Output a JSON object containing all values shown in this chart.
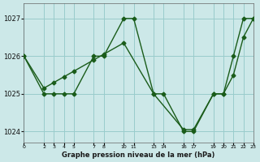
{
  "title": "Graphe pression niveau de la mer (hPa)",
  "bg_color": "#cce8e8",
  "grid_color": "#99cccc",
  "line_color": "#1a5c1a",
  "ylim": [
    1023.7,
    1027.4
  ],
  "yticks": [
    1024,
    1025,
    1026,
    1027
  ],
  "xlim": [
    0,
    23
  ],
  "series1_x": [
    0,
    2,
    3,
    4,
    5,
    7,
    8,
    10,
    11,
    13,
    14,
    16,
    17,
    19,
    20,
    21,
    22,
    23
  ],
  "series1_y": [
    1026,
    1025,
    1025,
    1025,
    1025,
    1026,
    1026,
    1027,
    1027,
    1025,
    1025,
    1024,
    1024,
    1025,
    1025,
    1026,
    1027,
    1027
  ],
  "series2_x": [
    0,
    2,
    3,
    4,
    5,
    7,
    8,
    10,
    13,
    16,
    17,
    19,
    20,
    21,
    22,
    23
  ],
  "series2_y": [
    1026,
    1025.15,
    1025.3,
    1025.45,
    1025.6,
    1025.9,
    1026.05,
    1026.35,
    1025.0,
    1024.05,
    1024.05,
    1025.0,
    1025.0,
    1025.5,
    1026.5,
    1027
  ],
  "xtick_positions": [
    0,
    2,
    3,
    4,
    5,
    7,
    8,
    10,
    11,
    13,
    14,
    16,
    17,
    19,
    20,
    21,
    22,
    23
  ],
  "xtick_labels": [
    "0",
    "2",
    "3",
    "4",
    "5",
    "7",
    "8",
    "10",
    "11",
    "13",
    "14",
    "16",
    "17",
    "19",
    "20",
    "21",
    "22",
    "23"
  ]
}
